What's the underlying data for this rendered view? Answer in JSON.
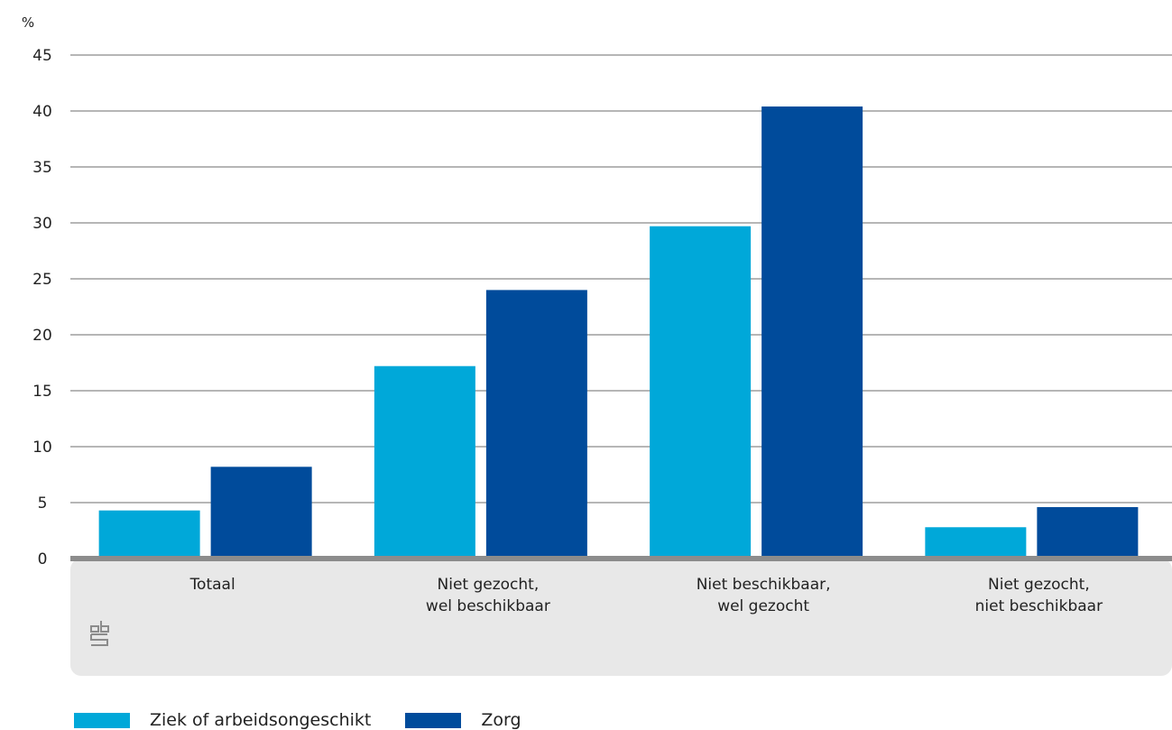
{
  "chart_data": {
    "type": "bar",
    "ylabel": "%",
    "ylim": [
      0,
      45
    ],
    "yticks": [
      0,
      5,
      10,
      15,
      20,
      25,
      30,
      35,
      40,
      45
    ],
    "grid": true,
    "legend_position": "bottom-left",
    "categories": [
      [
        "Totaal"
      ],
      [
        "Niet gezocht,",
        "wel beschikbaar"
      ],
      [
        "Niet beschikbaar,",
        "wel gezocht"
      ],
      [
        "Niet gezocht,",
        "niet beschikbaar"
      ]
    ],
    "series": [
      {
        "name": "Ziek of arbeidsongeschikt",
        "color": "#00a8d9",
        "values": [
          4.3,
          17.2,
          29.7,
          2.8
        ]
      },
      {
        "name": "Zorg",
        "color": "#004b9b",
        "values": [
          8.2,
          24.0,
          40.4,
          4.6
        ]
      }
    ]
  },
  "logo": {
    "icon": "cbs-logo-icon",
    "text": "cbs"
  }
}
